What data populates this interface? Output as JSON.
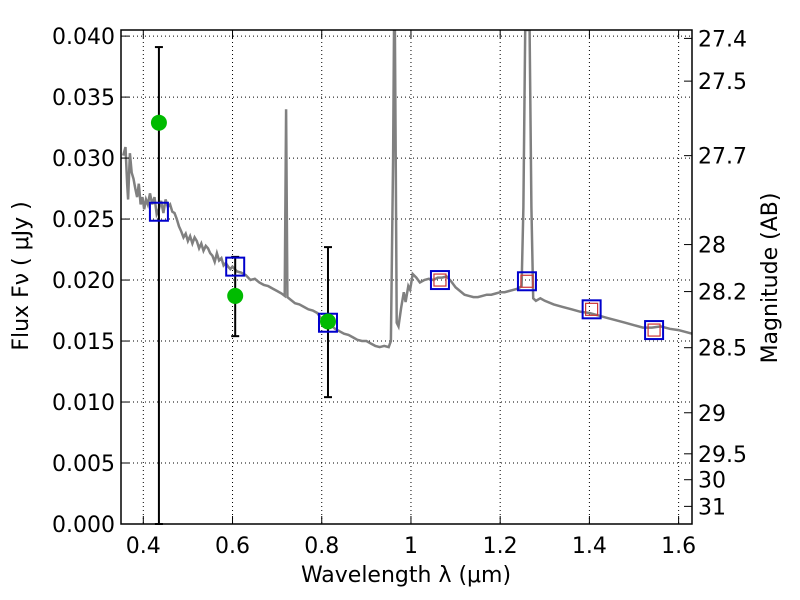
{
  "chart_data": {
    "type": "scatter",
    "xlabel": "Wavelength  λ (μm)",
    "ylabel_left": "Flux  Fν  ( μJy )",
    "ylabel_right": "Magnitude (AB)",
    "xlim": [
      0.35,
      1.63
    ],
    "ylim": [
      0.0,
      0.0405
    ],
    "x_ticks": [
      0.4,
      0.6,
      0.8,
      1.0,
      1.2,
      1.4,
      1.6
    ],
    "x_tick_labels": [
      "0.4",
      "0.6",
      "0.8",
      "1",
      "1.2",
      "1.4",
      "1.6"
    ],
    "y_ticks": [
      0.0,
      0.005,
      0.01,
      0.015,
      0.02,
      0.025,
      0.03,
      0.035,
      0.04
    ],
    "y_tick_labels": [
      "0.000",
      "0.005",
      "0.010",
      "0.015",
      "0.020",
      "0.025",
      "0.030",
      "0.035",
      "0.040"
    ],
    "mag_tick_labels": [
      "27.4",
      "27.5",
      "27.7",
      "28",
      "28.2",
      "28.5",
      "29",
      "29.5",
      "30",
      "31"
    ],
    "grid": true,
    "colors": {
      "model_sed": "#808080",
      "observed_points": "#00bb00",
      "model_squares": "#0000cc",
      "model_squares_inner": "#cc3333",
      "error_bars": "#000000"
    },
    "series": [
      {
        "kind": "model_sed_line",
        "points": [
          [
            0.355,
            0.0302
          ],
          [
            0.36,
            0.0309
          ],
          [
            0.364,
            0.0278
          ],
          [
            0.366,
            0.0266
          ],
          [
            0.37,
            0.0304
          ],
          [
            0.374,
            0.0288
          ],
          [
            0.378,
            0.0283
          ],
          [
            0.382,
            0.0275
          ],
          [
            0.386,
            0.0268
          ],
          [
            0.39,
            0.0279
          ],
          [
            0.394,
            0.0262
          ],
          [
            0.398,
            0.0268
          ],
          [
            0.402,
            0.0258
          ],
          [
            0.406,
            0.0266
          ],
          [
            0.41,
            0.0262
          ],
          [
            0.415,
            0.0271
          ],
          [
            0.42,
            0.0262
          ],
          [
            0.425,
            0.0268
          ],
          [
            0.43,
            0.0254
          ],
          [
            0.435,
            0.0258
          ],
          [
            0.44,
            0.0265
          ],
          [
            0.445,
            0.0255
          ],
          [
            0.45,
            0.0266
          ],
          [
            0.455,
            0.026
          ],
          [
            0.46,
            0.0262
          ],
          [
            0.465,
            0.0256
          ],
          [
            0.47,
            0.0255
          ],
          [
            0.475,
            0.025
          ],
          [
            0.48,
            0.0244
          ],
          [
            0.485,
            0.024
          ],
          [
            0.49,
            0.0235
          ],
          [
            0.495,
            0.0238
          ],
          [
            0.5,
            0.0232
          ],
          [
            0.505,
            0.0236
          ],
          [
            0.51,
            0.023
          ],
          [
            0.515,
            0.0235
          ],
          [
            0.52,
            0.0232
          ],
          [
            0.525,
            0.0226
          ],
          [
            0.53,
            0.023
          ],
          [
            0.535,
            0.0224
          ],
          [
            0.54,
            0.0228
          ],
          [
            0.545,
            0.0226
          ],
          [
            0.55,
            0.0222
          ],
          [
            0.555,
            0.022
          ],
          [
            0.56,
            0.0215
          ],
          [
            0.565,
            0.0222
          ],
          [
            0.57,
            0.0216
          ],
          [
            0.575,
            0.0218
          ],
          [
            0.58,
            0.0212
          ],
          [
            0.585,
            0.0214
          ],
          [
            0.59,
            0.0211
          ],
          [
            0.595,
            0.0209
          ],
          [
            0.6,
            0.0211
          ],
          [
            0.61,
            0.0207
          ],
          [
            0.62,
            0.0206
          ],
          [
            0.63,
            0.0204
          ],
          [
            0.64,
            0.02
          ],
          [
            0.65,
            0.0201
          ],
          [
            0.66,
            0.0198
          ],
          [
            0.67,
            0.0196
          ],
          [
            0.68,
            0.0195
          ],
          [
            0.69,
            0.0193
          ],
          [
            0.7,
            0.0191
          ],
          [
            0.71,
            0.0189
          ],
          [
            0.717,
            0.0187
          ],
          [
            0.72,
            0.034
          ],
          [
            0.723,
            0.0186
          ],
          [
            0.73,
            0.0184
          ],
          [
            0.74,
            0.0181
          ],
          [
            0.75,
            0.018
          ],
          [
            0.76,
            0.0178
          ],
          [
            0.77,
            0.0176
          ],
          [
            0.78,
            0.0175
          ],
          [
            0.79,
            0.0173
          ],
          [
            0.8,
            0.0168
          ],
          [
            0.81,
            0.0166
          ],
          [
            0.82,
            0.0163
          ],
          [
            0.83,
            0.016
          ],
          [
            0.84,
            0.0158
          ],
          [
            0.85,
            0.0156
          ],
          [
            0.86,
            0.0155
          ],
          [
            0.87,
            0.0153
          ],
          [
            0.88,
            0.0151
          ],
          [
            0.89,
            0.015
          ],
          [
            0.9,
            0.015
          ],
          [
            0.91,
            0.0148
          ],
          [
            0.92,
            0.0146
          ],
          [
            0.93,
            0.0145
          ],
          [
            0.94,
            0.0146
          ],
          [
            0.95,
            0.0145
          ],
          [
            0.955,
            0.015
          ],
          [
            0.96,
            0.03
          ],
          [
            0.962,
            0.0405
          ],
          [
            0.964,
            0.0405
          ],
          [
            0.966,
            0.029
          ],
          [
            0.968,
            0.0165
          ],
          [
            0.972,
            0.0162
          ],
          [
            0.978,
            0.0177
          ],
          [
            0.984,
            0.019
          ],
          [
            0.988,
            0.0182
          ],
          [
            0.994,
            0.0195
          ],
          [
            0.998,
            0.0192
          ],
          [
            1.004,
            0.0205
          ],
          [
            1.012,
            0.0202
          ],
          [
            1.02,
            0.0198
          ],
          [
            1.03,
            0.02
          ],
          [
            1.04,
            0.0201
          ],
          [
            1.05,
            0.02
          ],
          [
            1.06,
            0.0202
          ],
          [
            1.07,
            0.0202
          ],
          [
            1.08,
            0.0203
          ],
          [
            1.09,
            0.0199
          ],
          [
            1.1,
            0.0194
          ],
          [
            1.11,
            0.0191
          ],
          [
            1.12,
            0.0188
          ],
          [
            1.13,
            0.0187
          ],
          [
            1.14,
            0.0186
          ],
          [
            1.15,
            0.0186
          ],
          [
            1.16,
            0.0187
          ],
          [
            1.17,
            0.0188
          ],
          [
            1.18,
            0.0188
          ],
          [
            1.19,
            0.0189
          ],
          [
            1.2,
            0.019
          ],
          [
            1.21,
            0.019
          ],
          [
            1.22,
            0.0191
          ],
          [
            1.23,
            0.0192
          ],
          [
            1.24,
            0.0193
          ],
          [
            1.248,
            0.0195
          ],
          [
            1.252,
            0.026
          ],
          [
            1.256,
            0.0405
          ],
          [
            1.266,
            0.0405
          ],
          [
            1.27,
            0.026
          ],
          [
            1.274,
            0.0185
          ],
          [
            1.28,
            0.0183
          ],
          [
            1.29,
            0.0185
          ],
          [
            1.3,
            0.0183
          ],
          [
            1.32,
            0.018
          ],
          [
            1.34,
            0.0178
          ],
          [
            1.36,
            0.0176
          ],
          [
            1.38,
            0.0174
          ],
          [
            1.4,
            0.0173
          ],
          [
            1.42,
            0.0171
          ],
          [
            1.44,
            0.0169
          ],
          [
            1.46,
            0.0167
          ],
          [
            1.48,
            0.0165
          ],
          [
            1.5,
            0.0163
          ],
          [
            1.52,
            0.0161
          ],
          [
            1.54,
            0.0161
          ],
          [
            1.56,
            0.0162
          ],
          [
            1.58,
            0.016
          ],
          [
            1.6,
            0.0159
          ],
          [
            1.63,
            0.0156
          ]
        ]
      },
      {
        "kind": "observed_flux",
        "points": [
          {
            "x": 0.435,
            "y": 0.0329,
            "yerr_low": 0.0,
            "yerr_high": 0.0391
          },
          {
            "x": 0.606,
            "y": 0.0187,
            "yerr_low": 0.0154,
            "yerr_high": 0.0219
          },
          {
            "x": 0.814,
            "y": 0.0166,
            "yerr_low": 0.0104,
            "yerr_high": 0.0227
          }
        ]
      },
      {
        "kind": "model_band_flux",
        "points": [
          {
            "x": 0.435,
            "y": 0.0256,
            "inner": false
          },
          {
            "x": 0.606,
            "y": 0.0211,
            "inner": false
          },
          {
            "x": 0.814,
            "y": 0.0165,
            "inner": false
          },
          {
            "x": 1.065,
            "y": 0.02,
            "inner": true
          },
          {
            "x": 1.26,
            "y": 0.0199,
            "inner": true
          },
          {
            "x": 1.405,
            "y": 0.0176,
            "inner": true
          },
          {
            "x": 1.545,
            "y": 0.0159,
            "inner": true
          }
        ]
      }
    ]
  }
}
